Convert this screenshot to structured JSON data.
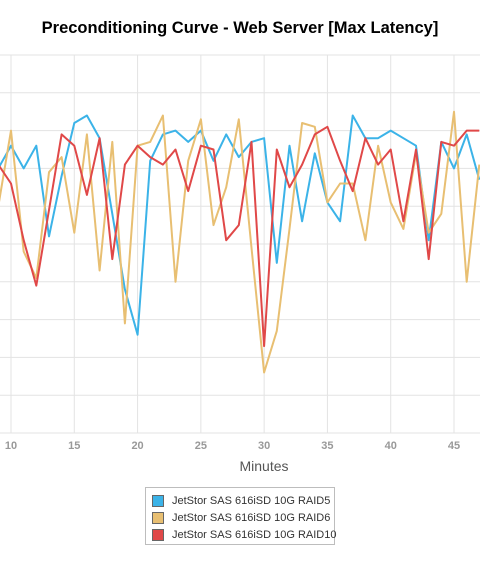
{
  "title": "Preconditioning Curve - Web Server [Max Latency]",
  "chart_data": {
    "type": "line",
    "title": "Preconditioning Curve - Web Server [Max Latency]",
    "xlabel": "Minutes",
    "ylabel": "",
    "xlim": [
      9,
      47
    ],
    "ylim": [
      0,
      10
    ],
    "x_ticks": [
      10,
      15,
      20,
      25,
      30,
      35,
      40,
      45
    ],
    "grid": true,
    "legend_position": "bottom",
    "x": [
      9,
      10,
      11,
      12,
      13,
      14,
      15,
      16,
      17,
      18,
      19,
      20,
      21,
      22,
      23,
      24,
      25,
      26,
      27,
      28,
      29,
      30,
      31,
      32,
      33,
      34,
      35,
      36,
      37,
      38,
      39,
      40,
      41,
      42,
      43,
      44,
      45,
      46,
      47
    ],
    "series": [
      {
        "name": "JetStor SAS 616iSD 10G RAID5",
        "color": "#3bb3e8",
        "values": [
          7.0,
          7.6,
          7.0,
          7.6,
          5.2,
          6.8,
          8.2,
          8.4,
          7.8,
          5.8,
          3.8,
          2.6,
          7.2,
          7.9,
          8.0,
          7.7,
          8.0,
          7.2,
          7.9,
          7.3,
          7.7,
          7.8,
          4.5,
          7.6,
          5.6,
          7.4,
          6.1,
          5.6,
          8.4,
          7.8,
          7.8,
          8.0,
          7.8,
          7.6,
          5.1,
          7.7,
          7.0,
          7.9,
          6.7
        ]
      },
      {
        "name": "JetStor SAS 616iSD 10G RAID6",
        "color": "#e8bf72",
        "values": [
          6.0,
          8.0,
          4.8,
          4.1,
          6.9,
          7.3,
          5.3,
          7.9,
          4.3,
          7.7,
          2.9,
          7.6,
          7.7,
          8.4,
          4.0,
          7.2,
          8.3,
          5.5,
          6.5,
          8.3,
          4.9,
          1.6,
          2.7,
          5.4,
          8.2,
          8.1,
          6.1,
          6.6,
          6.6,
          5.1,
          7.6,
          6.1,
          5.4,
          7.4,
          5.3,
          5.8,
          8.5,
          4.0,
          7.1
        ]
      },
      {
        "name": "JetStor SAS 616iSD 10G RAID10",
        "color": "#e04848",
        "values": [
          7.1,
          6.6,
          5.1,
          3.9,
          5.9,
          7.9,
          7.6,
          6.3,
          7.8,
          4.6,
          7.1,
          7.6,
          7.3,
          7.1,
          7.5,
          6.4,
          7.6,
          7.5,
          5.1,
          5.5,
          7.7,
          2.3,
          7.5,
          6.5,
          7.1,
          7.9,
          8.1,
          7.2,
          6.4,
          7.8,
          7.1,
          7.5,
          5.6,
          7.5,
          4.6,
          7.7,
          7.6,
          8.0,
          8.0
        ]
      }
    ]
  }
}
